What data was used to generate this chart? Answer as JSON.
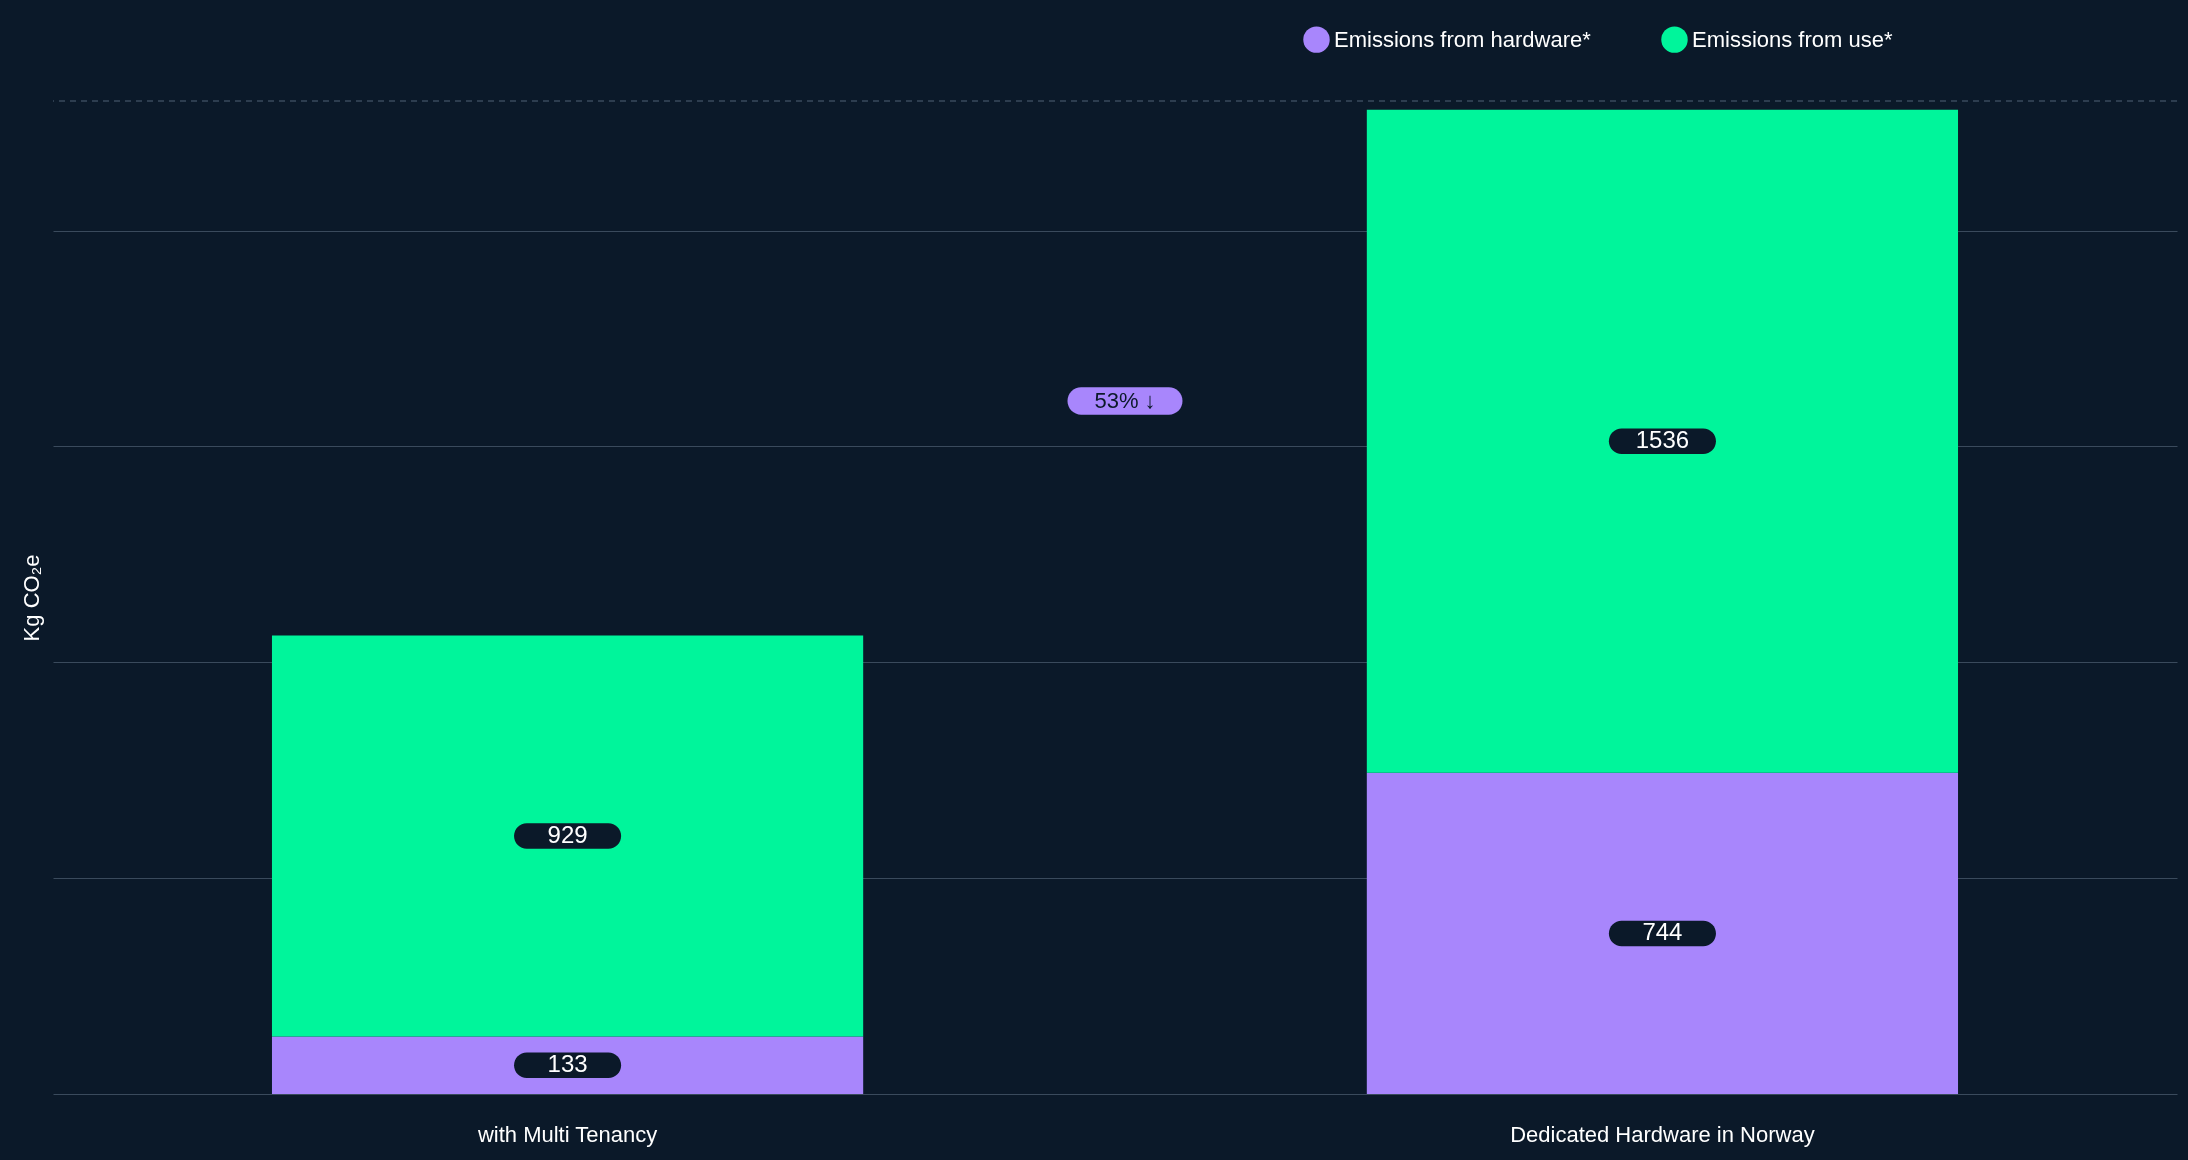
{
  "chart_data": {
    "type": "bar",
    "stacked": true,
    "ylabel": "Kg CO₂e",
    "categories": [
      "with Multi Tenancy",
      "Dedicated Hardware in Norway"
    ],
    "series": [
      {
        "name": "Emissions from hardware*",
        "color": "#a886fc",
        "values": [
          133,
          744
        ]
      },
      {
        "name": "Emissions from use*",
        "color": "#00f59b",
        "values": [
          929,
          1536
        ]
      }
    ],
    "data_labels": true,
    "ylim": [
      0,
      2300
    ],
    "yticks": [
      {
        "value": 0,
        "label": null
      },
      {
        "value": 500,
        "label": null
      },
      {
        "value": 1000,
        "label": null
      },
      {
        "value": 1500,
        "label": null
      },
      {
        "value": 2000,
        "label": null
      }
    ],
    "ref_lines": [
      {
        "axis": "y",
        "value": 2300,
        "label": null,
        "line_style": "dashed",
        "color": "#3a4a5c"
      }
    ],
    "annotations": [
      "53% ↓"
    ],
    "grid": "y",
    "legend": "top right",
    "tick_labels": "x"
  }
}
